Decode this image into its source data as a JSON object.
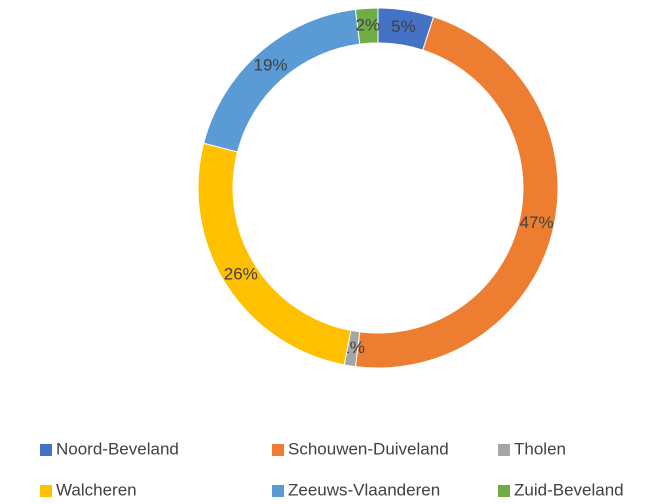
{
  "chart_data": {
    "type": "donut",
    "categories": [
      "Noord-Beveland",
      "Schouwen-Duiveland",
      "Tholen",
      "Walcheren",
      "Zeeuws-Vlaanderen",
      "Zuid-Beveland"
    ],
    "values": [
      5,
      47,
      1,
      26,
      19,
      2
    ],
    "value_labels": [
      "5%",
      "47%",
      "1%",
      "26%",
      "19%",
      "2%"
    ],
    "colors": [
      "#4472c4",
      "#ed7d31",
      "#a5a5a5",
      "#ffc000",
      "#5b9bd5",
      "#70ad47"
    ],
    "legend": "bottom"
  }
}
